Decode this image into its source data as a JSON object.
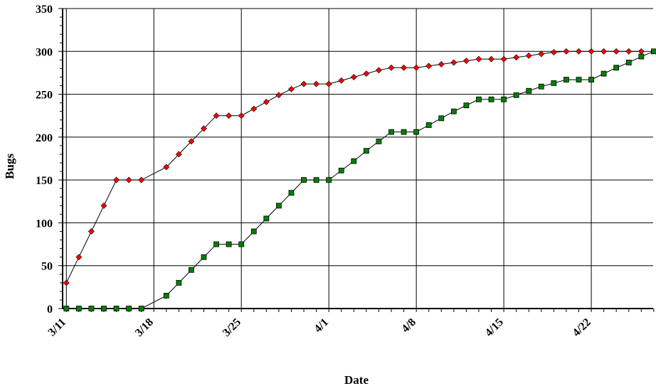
{
  "chart_data": {
    "type": "line",
    "title": "",
    "xlabel": "Date",
    "ylabel": "Bugs",
    "ylim": [
      0,
      350
    ],
    "yticks": [
      0,
      50,
      100,
      150,
      200,
      250,
      300,
      350
    ],
    "x_tick_labels": [
      "3/11",
      "3/18",
      "3/25",
      "4/1",
      "4/8",
      "4/15",
      "4/22"
    ],
    "x_dates": [
      "3/11",
      "3/12",
      "3/13",
      "3/14",
      "3/15",
      "3/16",
      "3/17",
      "3/18",
      "3/19",
      "3/20",
      "3/21",
      "3/22",
      "3/23",
      "3/24",
      "3/25",
      "3/26",
      "3/27",
      "3/28",
      "3/29",
      "3/30",
      "3/31",
      "4/1",
      "4/2",
      "4/3",
      "4/4",
      "4/5",
      "4/6",
      "4/7",
      "4/8",
      "4/9",
      "4/10",
      "4/11",
      "4/12",
      "4/13",
      "4/14",
      "4/15",
      "4/16",
      "4/17",
      "4/18",
      "4/19",
      "4/20",
      "4/21",
      "4/22",
      "4/23",
      "4/24",
      "4/25",
      "4/26",
      "4/27"
    ],
    "grid": true,
    "legend": "none",
    "series": [
      {
        "color": "#ff0000",
        "marker": "diamond",
        "values": [
          30,
          60,
          90,
          120,
          150,
          150,
          150,
          null,
          165,
          180,
          195,
          210,
          225,
          225,
          225,
          233,
          241,
          249,
          256,
          262,
          262,
          262,
          266,
          270,
          274,
          278,
          281,
          281,
          281,
          283,
          285,
          287,
          289,
          291,
          291,
          291,
          293,
          295,
          297,
          299,
          300,
          300,
          300,
          300,
          300,
          300,
          300,
          null
        ]
      },
      {
        "color": "#008000",
        "marker": "square",
        "values": [
          0,
          0,
          0,
          0,
          0,
          0,
          0,
          null,
          15,
          30,
          45,
          60,
          75,
          75,
          75,
          90,
          105,
          120,
          135,
          150,
          150,
          150,
          161,
          172,
          184,
          195,
          206,
          206,
          206,
          214,
          222,
          230,
          237,
          244,
          244,
          244,
          249,
          254,
          259,
          263,
          267,
          267,
          267,
          274,
          281,
          287,
          294,
          300
        ]
      }
    ]
  }
}
